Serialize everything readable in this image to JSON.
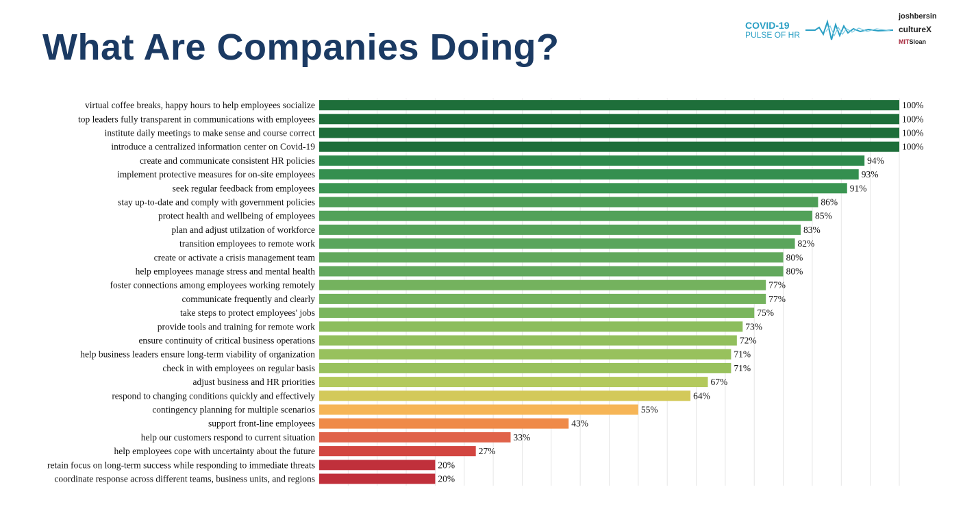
{
  "title": "What Are Companies Doing?",
  "logos": {
    "covid_line1": "COVID-19",
    "covid_line2": "PULSE OF HR",
    "brand1": "joshbersin",
    "brand2": "cultureX",
    "brand3_prefix": "MIT",
    "brand3_suffix": "Sloan"
  },
  "chart_data": {
    "type": "bar",
    "orientation": "horizontal",
    "title": "",
    "xlabel": "",
    "ylabel": "",
    "xlim": [
      0,
      100
    ],
    "grid": true,
    "value_suffix": "%",
    "categories": [
      "virtual coffee breaks, happy hours to help employees socialize",
      "top leaders fully transparent in communications with employees",
      "institute daily meetings to make sense and course correct",
      "introduce a centralized information center on Covid-19",
      "create and communicate consistent HR policies",
      "implement protective measures for on-site employees",
      "seek regular feedback from employees",
      "stay up-to-date and comply with government policies",
      "protect health and wellbeing of employees",
      "plan and adjust utilzation of workforce",
      "transition employees to remote work",
      "create or activate a crisis management team",
      "help employees manage stress and mental health",
      "foster connections among employees working remotely",
      "communicate frequently and clearly",
      "take steps to protect employees' jobs",
      "provide tools and training for remote work",
      "ensure continuity of critical business operations",
      "help business leaders ensure long-term viability of organization",
      "check in with employees on regular basis",
      "adjust business and HR priorities",
      "respond to changing conditions quickly and effectively",
      "contingency planning for multiple scenarios",
      "support front-line employees",
      "help our customers respond to current situation",
      "help employees cope with uncertainty about the future",
      "retain focus on long-term success while responding to immediate threats",
      "coordinate response across different teams, business units, and regions"
    ],
    "values": [
      100,
      100,
      100,
      100,
      94,
      93,
      91,
      86,
      85,
      83,
      82,
      80,
      80,
      77,
      77,
      75,
      73,
      72,
      71,
      71,
      67,
      64,
      55,
      43,
      33,
      27,
      20,
      20
    ],
    "colors": [
      "#1e6e3a",
      "#1e6e3a",
      "#1e6e3a",
      "#1e6e3a",
      "#2e8a4c",
      "#348f4f",
      "#3a9552",
      "#4e9e57",
      "#52a159",
      "#56a35b",
      "#5aa55c",
      "#62a85d",
      "#62a85d",
      "#74b25e",
      "#74b25e",
      "#7ab55d",
      "#8cbd5d",
      "#92bf5d",
      "#98c15d",
      "#98c15d",
      "#b3c95c",
      "#d3c95a",
      "#f6b556",
      "#ef8a48",
      "#e0634a",
      "#d24540",
      "#c0303b",
      "#c0303b"
    ]
  }
}
